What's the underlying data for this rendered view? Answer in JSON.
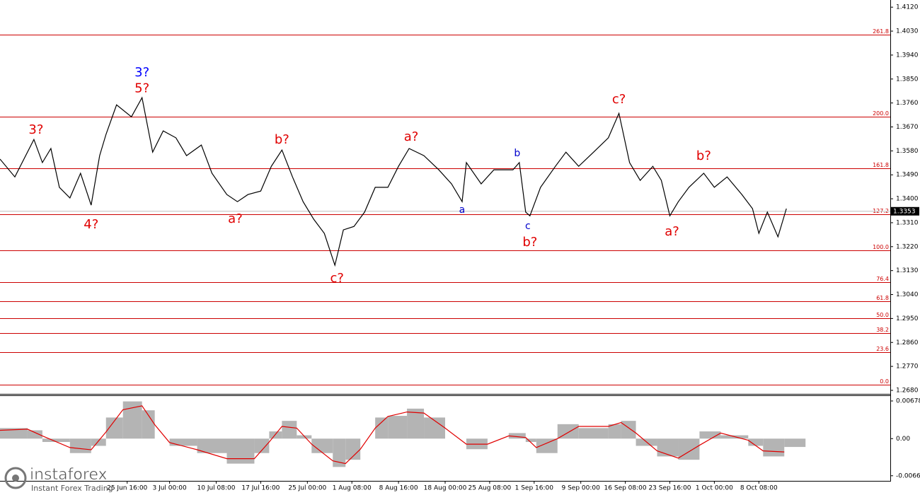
{
  "chart_data": [
    {
      "type": "line",
      "xlim": [
        0,
        420
      ],
      "ylim": [
        1.2672,
        1.4147
      ],
      "yticks": [
        {
          "value": 1.412,
          "label": "1.4120"
        },
        {
          "value": 1.403,
          "label": "1.4030"
        },
        {
          "value": 1.394,
          "label": "1.3940"
        },
        {
          "value": 1.385,
          "label": "1.3850"
        },
        {
          "value": 1.376,
          "label": "1.3760"
        },
        {
          "value": 1.367,
          "label": "1.3670"
        },
        {
          "value": 1.358,
          "label": "1.3580"
        },
        {
          "value": 1.349,
          "label": "1.3490"
        },
        {
          "value": 1.34,
          "label": "1.3400"
        },
        {
          "value": 1.331,
          "label": "1.3310"
        },
        {
          "value": 1.322,
          "label": "1.3220"
        },
        {
          "value": 1.313,
          "label": "1.3130"
        },
        {
          "value": 1.304,
          "label": "1.3040"
        },
        {
          "value": 1.295,
          "label": "1.2950"
        },
        {
          "value": 1.286,
          "label": "1.2860"
        },
        {
          "value": 1.277,
          "label": "1.2770"
        },
        {
          "value": 1.268,
          "label": "1.2680"
        }
      ],
      "x": [
        0,
        7,
        16,
        20,
        24,
        28,
        33,
        38,
        43,
        47,
        50,
        55,
        62,
        67,
        72,
        77,
        83,
        88,
        95,
        100,
        107,
        112,
        117,
        123,
        128,
        133,
        138,
        143,
        148,
        153,
        158,
        162,
        167,
        172,
        177,
        183,
        188,
        193,
        200,
        207,
        213,
        218,
        220,
        227,
        233,
        242,
        245,
        248,
        250,
        255,
        262,
        267,
        273,
        280,
        287,
        292,
        297,
        302,
        308,
        312,
        316,
        320,
        325,
        332,
        337,
        343,
        350,
        355,
        358,
        362,
        367,
        371
      ],
      "series": [
        {
          "color": "#000000",
          "values": [
            1.3549,
            1.3482,
            1.3623,
            1.3536,
            1.3589,
            1.3443,
            1.3403,
            1.3496,
            1.3376,
            1.3562,
            1.3642,
            1.3753,
            1.3708,
            1.378,
            1.3575,
            1.3655,
            1.3629,
            1.3562,
            1.3602,
            1.3496,
            1.3416,
            1.3389,
            1.3416,
            1.3429,
            1.3522,
            1.3583,
            1.3482,
            1.3389,
            1.3323,
            1.327,
            1.315,
            1.3283,
            1.3296,
            1.335,
            1.3443,
            1.3443,
            1.3522,
            1.3589,
            1.3562,
            1.3509,
            1.3456,
            1.3389,
            1.3536,
            1.3456,
            1.3509,
            1.3509,
            1.3536,
            1.335,
            1.3336,
            1.3443,
            1.3522,
            1.3575,
            1.3522,
            1.3575,
            1.3629,
            1.3721,
            1.3536,
            1.3469,
            1.3522,
            1.3469,
            1.3336,
            1.3389,
            1.3443,
            1.3496,
            1.3443,
            1.3482,
            1.3416,
            1.3363,
            1.327,
            1.335,
            1.3257,
            1.3363
          ]
        }
      ],
      "levels_color": "#cc0000",
      "levels": [
        {
          "value": 1.4016,
          "label": "261.8"
        },
        {
          "value": 1.3708,
          "label": "200.0"
        },
        {
          "value": 1.3514,
          "label": "161.8"
        },
        {
          "value": 1.3342,
          "label": "127.2"
        },
        {
          "value": 1.3206,
          "label": "100.0"
        },
        {
          "value": 1.3086,
          "label": "76.4"
        },
        {
          "value": 1.3014,
          "label": "61.8"
        },
        {
          "value": 1.295,
          "label": "50.0"
        },
        {
          "value": 1.2894,
          "label": "38.2"
        },
        {
          "value": 1.2823,
          "label": "23.6"
        },
        {
          "value": 1.2701,
          "label": "0.0"
        }
      ],
      "last_price": {
        "value": 1.3353,
        "label": "1.3353"
      },
      "annotations": [
        {
          "text": "3?",
          "x": 17,
          "y": 1.3658,
          "color": "#e00000"
        },
        {
          "text": "4?",
          "x": 43,
          "y": 1.3302,
          "color": "#e00000"
        },
        {
          "text": "3?",
          "x": 67,
          "y": 1.3873,
          "color": "#0000ff"
        },
        {
          "text": "5?",
          "x": 67,
          "y": 1.3814,
          "color": "#e00000"
        },
        {
          "text": "a?",
          "x": 111,
          "y": 1.3323,
          "color": "#e00000"
        },
        {
          "text": "b?",
          "x": 133,
          "y": 1.3621,
          "color": "#e00000"
        },
        {
          "text": "c?",
          "x": 159,
          "y": 1.31,
          "color": "#e00000"
        },
        {
          "text": "a?",
          "x": 194,
          "y": 1.3631,
          "color": "#e00000"
        },
        {
          "text": "a",
          "x": 218,
          "y": 1.3358,
          "color": "#0000cc"
        },
        {
          "text": "b",
          "x": 244,
          "y": 1.357,
          "color": "#0000cc"
        },
        {
          "text": "c",
          "x": 249,
          "y": 1.3296,
          "color": "#0000cc"
        },
        {
          "text": "b?",
          "x": 250,
          "y": 1.3235,
          "color": "#e00000"
        },
        {
          "text": "c?",
          "x": 292,
          "y": 1.3772,
          "color": "#e00000"
        },
        {
          "text": "a?",
          "x": 317,
          "y": 1.3275,
          "color": "#e00000"
        },
        {
          "text": "b?",
          "x": 332,
          "y": 1.3559,
          "color": "#e00000"
        }
      ]
    },
    {
      "type": "macd",
      "xlim": [
        0,
        420
      ],
      "ylim": [
        -0.0076,
        0.0078
      ],
      "yticks": [
        0.00678,
        {
          "value": 0,
          "label": "0.00"
        },
        -0.00668
      ],
      "xticks": [
        {
          "value": 60,
          "label": "25 Jun 16:00"
        },
        {
          "value": 80,
          "label": "3 Jul 00:00"
        },
        {
          "value": 102,
          "label": "10 Jul 08:00"
        },
        {
          "value": 123,
          "label": "17 Jul 16:00"
        },
        {
          "value": 145,
          "label": "25 Jul 00:00"
        },
        {
          "value": 166,
          "label": "1 Aug 08:00"
        },
        {
          "value": 188,
          "label": "8 Aug 16:00"
        },
        {
          "value": 210,
          "label": "18 Aug 00:00"
        },
        {
          "value": 231,
          "label": "25 Aug 08:00"
        },
        {
          "value": 252,
          "label": "1 Sep 16:00"
        },
        {
          "value": 274,
          "label": "9 Sep 00:00"
        },
        {
          "value": 295,
          "label": "16 Sep 08:00"
        },
        {
          "value": 316,
          "label": "23 Sep 16:00"
        },
        {
          "value": 337,
          "label": "1 Oct 00:00"
        },
        {
          "value": 358,
          "label": "8 Oct 08:00"
        }
      ],
      "x": [
        0,
        13,
        20,
        33,
        43,
        50,
        58,
        67,
        73,
        80,
        93,
        107,
        120,
        127,
        133,
        140,
        147,
        157,
        163,
        170,
        177,
        183,
        192,
        200,
        210,
        220,
        230,
        240,
        248,
        253,
        263,
        273,
        287,
        293,
        300,
        310,
        320,
        330,
        340,
        353,
        360,
        370
      ],
      "series": [
        {
          "type": "bar",
          "color": "#b4b4b4",
          "values": [
            0.0019,
            0.0015,
            -0.0006,
            -0.0026,
            -0.0013,
            0.0038,
            0.0067,
            0.0051,
            0,
            -0.0013,
            -0.0026,
            -0.0045,
            -0.0026,
            0.0013,
            0.0032,
            0.0006,
            -0.0026,
            -0.0051,
            -0.0038,
            0,
            0.0038,
            0.0041,
            0.0054,
            0.0038,
            0,
            -0.0019,
            0,
            0.001,
            -0.0006,
            -0.0026,
            0.0026,
            0.0019,
            0.0026,
            0.0032,
            -0.0013,
            -0.0032,
            -0.0038,
            0.0013,
            0.0006,
            -0.0013,
            -0.0032,
            -0.0015
          ]
        },
        {
          "type": "line",
          "color": "#e00000",
          "values": [
            0.0015,
            0.0017,
            0.0005,
            -0.0016,
            -0.002,
            0.0012,
            0.0052,
            0.0059,
            0.0025,
            -0.0007,
            -0.002,
            -0.0036,
            -0.0036,
            -0.0006,
            0.0022,
            0.0019,
            -0.001,
            -0.004,
            -0.0045,
            -0.0019,
            0.0019,
            0.004,
            0.0048,
            0.0046,
            0.0019,
            -0.001,
            -0.001,
            0.0005,
            0.0002,
            -0.0016,
            0,
            0.0022,
            0.0022,
            0.0029,
            0.001,
            -0.0022,
            -0.0035,
            -0.0012,
            0.001,
            -0.0003,
            -0.0022,
            -0.0024
          ]
        }
      ]
    }
  ],
  "watermark": {
    "brand": "instaforex",
    "tagline": "Instant Forex Trading"
  }
}
